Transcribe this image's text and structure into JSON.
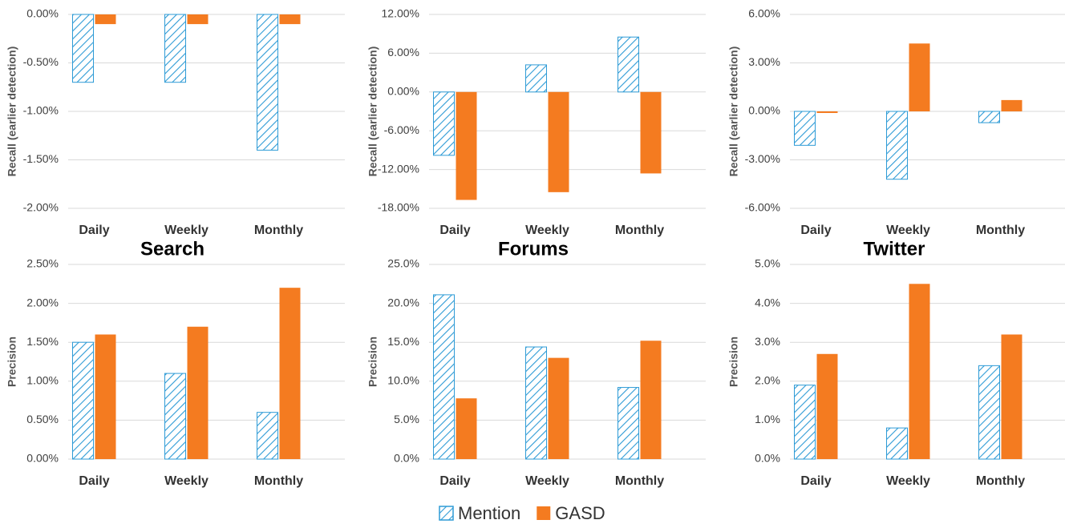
{
  "chart_data": [
    {
      "type": "bar",
      "ylabel": "Recall (earlier detection)",
      "categories": [
        "Daily",
        "Weekly",
        "Monthly"
      ],
      "series": [
        {
          "name": "Mention",
          "color": "#2e9bd6",
          "hatch": true,
          "values": [
            -0.7,
            -0.7,
            -1.4
          ]
        },
        {
          "name": "GASD",
          "color": "#f47b20",
          "hatch": false,
          "values": [
            -0.1,
            -0.1,
            -0.1
          ]
        }
      ],
      "ylim": [
        -2,
        0
      ],
      "yticks": [
        {
          "value": -2,
          "label": "-2.00%"
        },
        {
          "value": -1.5,
          "label": "-1.50%"
        },
        {
          "value": -1,
          "label": "-1.00%"
        },
        {
          "value": -0.5,
          "label": "-0.50%"
        },
        {
          "value": 0,
          "label": "0.00%"
        }
      ],
      "grid": true
    },
    {
      "type": "bar",
      "ylabel": "Recall (earlier detection)",
      "categories": [
        "Daily",
        "Weekly",
        "Monthly"
      ],
      "series": [
        {
          "name": "Mention",
          "color": "#2e9bd6",
          "hatch": true,
          "values": [
            -9.8,
            4.2,
            8.5
          ]
        },
        {
          "name": "GASD",
          "color": "#f47b20",
          "hatch": false,
          "values": [
            -16.7,
            -15.5,
            -12.6
          ]
        }
      ],
      "ylim": [
        -18,
        12
      ],
      "yticks": [
        {
          "value": -18,
          "label": "-18.00%"
        },
        {
          "value": -12,
          "label": "-12.00%"
        },
        {
          "value": -6,
          "label": "-6.00%"
        },
        {
          "value": 0,
          "label": "0.00%"
        },
        {
          "value": 6,
          "label": "6.00%"
        },
        {
          "value": 12,
          "label": "12.00%"
        }
      ],
      "grid": true
    },
    {
      "type": "bar",
      "ylabel": "Recall (earlier detection)",
      "categories": [
        "Daily",
        "Weekly",
        "Monthly"
      ],
      "series": [
        {
          "name": "Mention",
          "color": "#2e9bd6",
          "hatch": true,
          "values": [
            -2.1,
            -4.2,
            -0.7
          ]
        },
        {
          "name": "GASD",
          "color": "#f47b20",
          "hatch": false,
          "values": [
            -0.1,
            4.2,
            0.7
          ]
        }
      ],
      "ylim": [
        -6,
        6
      ],
      "yticks": [
        {
          "value": -6,
          "label": "-6.00%"
        },
        {
          "value": -3,
          "label": "-3.00%"
        },
        {
          "value": 0,
          "label": "0.00%"
        },
        {
          "value": 3,
          "label": "3.00%"
        },
        {
          "value": 6,
          "label": "6.00%"
        }
      ],
      "grid": true
    },
    {
      "type": "bar",
      "title": "Search",
      "ylabel": "Precision",
      "categories": [
        "Daily",
        "Weekly",
        "Monthly"
      ],
      "series": [
        {
          "name": "Mention",
          "color": "#2e9bd6",
          "hatch": true,
          "values": [
            1.5,
            1.1,
            0.6
          ]
        },
        {
          "name": "GASD",
          "color": "#f47b20",
          "hatch": false,
          "values": [
            1.6,
            1.7,
            2.2
          ]
        }
      ],
      "ylim": [
        0,
        2.5
      ],
      "yticks": [
        {
          "value": 0,
          "label": "0.00%"
        },
        {
          "value": 0.5,
          "label": "0.50%"
        },
        {
          "value": 1,
          "label": "1.00%"
        },
        {
          "value": 1.5,
          "label": "1.50%"
        },
        {
          "value": 2,
          "label": "2.00%"
        },
        {
          "value": 2.5,
          "label": "2.50%"
        }
      ],
      "grid": true
    },
    {
      "type": "bar",
      "title": "Forums",
      "ylabel": "Precision",
      "categories": [
        "Daily",
        "Weekly",
        "Monthly"
      ],
      "series": [
        {
          "name": "Mention",
          "color": "#2e9bd6",
          "hatch": true,
          "values": [
            21.1,
            14.4,
            9.2
          ]
        },
        {
          "name": "GASD",
          "color": "#f47b20",
          "hatch": false,
          "values": [
            7.8,
            13.0,
            15.2
          ]
        }
      ],
      "ylim": [
        0,
        25
      ],
      "yticks": [
        {
          "value": 0,
          "label": "0.0%"
        },
        {
          "value": 5,
          "label": "5.0%"
        },
        {
          "value": 10,
          "label": "10.0%"
        },
        {
          "value": 15,
          "label": "15.0%"
        },
        {
          "value": 20,
          "label": "20.0%"
        },
        {
          "value": 25,
          "label": "25.0%"
        }
      ],
      "grid": true
    },
    {
      "type": "bar",
      "title": "Twitter",
      "ylabel": "Precision",
      "categories": [
        "Daily",
        "Weekly",
        "Monthly"
      ],
      "series": [
        {
          "name": "Mention",
          "color": "#2e9bd6",
          "hatch": true,
          "values": [
            1.9,
            0.8,
            2.4
          ]
        },
        {
          "name": "GASD",
          "color": "#f47b20",
          "hatch": false,
          "values": [
            2.7,
            4.5,
            3.2
          ]
        }
      ],
      "ylim": [
        0,
        5
      ],
      "yticks": [
        {
          "value": 0,
          "label": "0.0%"
        },
        {
          "value": 1,
          "label": "1.0%"
        },
        {
          "value": 2,
          "label": "2.0%"
        },
        {
          "value": 3,
          "label": "3.0%"
        },
        {
          "value": 4,
          "label": "4.0%"
        },
        {
          "value": 5,
          "label": "5.0%"
        }
      ],
      "grid": true
    }
  ]
}
